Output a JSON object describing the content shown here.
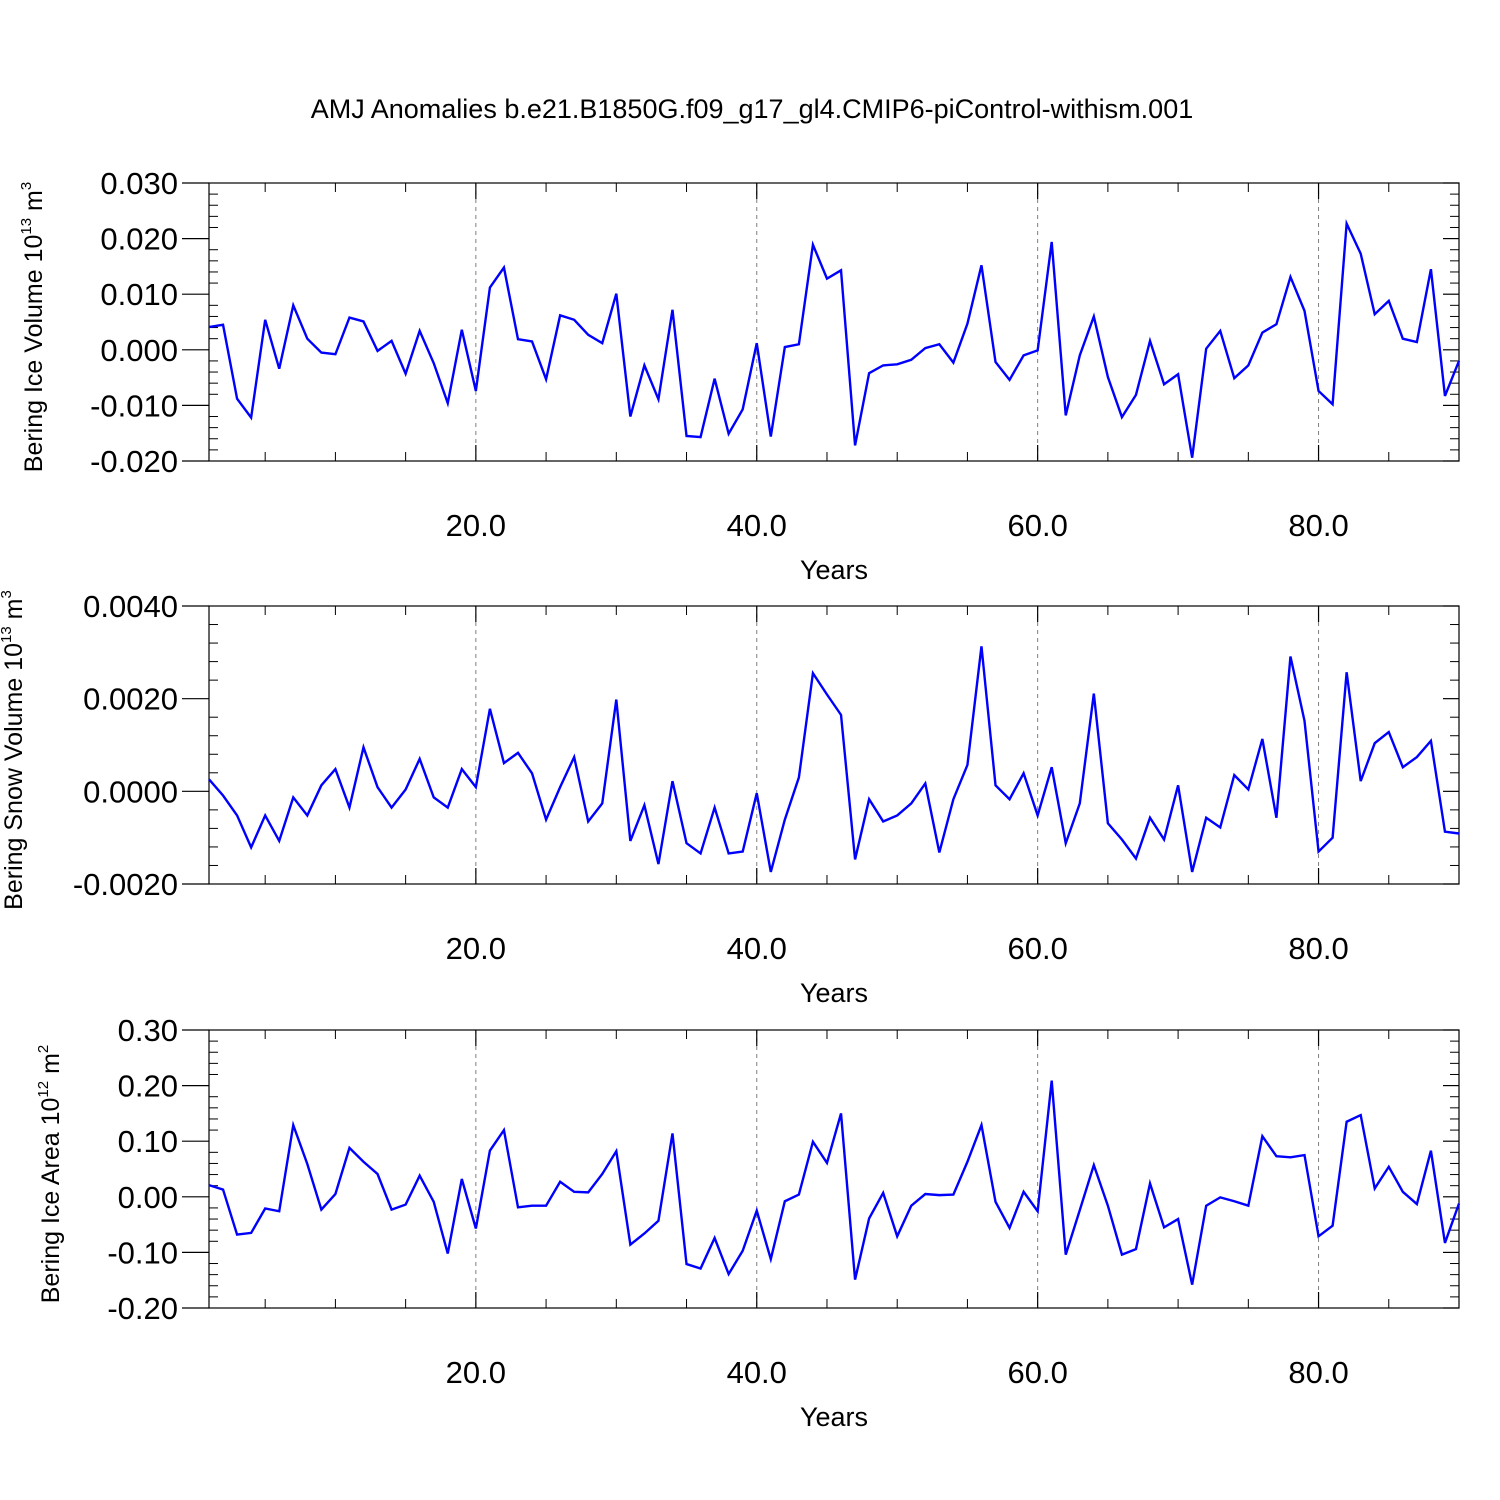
{
  "title": "AMJ Anomalies b.e21.B1850G.f09_g17_gl4.CMIP6-piControl-withism.001",
  "colors": {
    "line": "#0000ff",
    "axis": "#000000",
    "grid": "#808080"
  },
  "chart_data": [
    {
      "type": "line",
      "title": "AMJ Anomalies b.e21.B1850G.f09_g17_gl4.CMIP6-piControl-withism.001",
      "xlabel": "Years",
      "ylabel": {
        "text": "Bering Ice Volume 10",
        "sup": "13",
        "unit": " m",
        "unit_sup": "3"
      },
      "xlim": [
        1,
        90
      ],
      "ylim": [
        -0.02,
        0.03
      ],
      "x_ticks": [
        20,
        40,
        60,
        80
      ],
      "x_tick_labels": [
        "20.0",
        "40.0",
        "60.0",
        "80.0"
      ],
      "y_ticks": [
        -0.02,
        -0.01,
        0.0,
        0.01,
        0.02,
        0.03
      ],
      "y_tick_labels": [
        "-0.020",
        "-0.010",
        "0.000",
        "0.010",
        "0.020",
        "0.030"
      ],
      "grid": "vertical dashed at major x ticks",
      "x_start": 1,
      "series": [
        {
          "values": [
            0.0041,
            0.0045,
            -0.0088,
            -0.0122,
            0.0054,
            -0.0034,
            0.008,
            0.002,
            -0.0005,
            -0.0008,
            0.0058,
            0.0051,
            -0.0002,
            0.0016,
            -0.0043,
            0.0034,
            -0.0024,
            -0.0096,
            0.0036,
            -0.0074,
            0.0112,
            0.0148,
            0.0019,
            0.0015,
            -0.0053,
            0.0062,
            0.0054,
            0.0027,
            0.0012,
            0.0101,
            -0.012,
            -0.0028,
            -0.0089,
            0.0072,
            -0.0155,
            -0.0157,
            -0.0052,
            -0.0151,
            -0.0107,
            0.0012,
            -0.0156,
            0.0005,
            0.001,
            0.0189,
            0.0128,
            0.0143,
            -0.0172,
            -0.0042,
            -0.0028,
            -0.0026,
            -0.0018,
            0.0003,
            0.001,
            -0.0023,
            0.0047,
            0.0152,
            -0.0022,
            -0.0054,
            -0.001,
            -0.0001,
            0.0194,
            -0.0118,
            -0.001,
            0.006,
            -0.0049,
            -0.0121,
            -0.0081,
            0.0016,
            -0.0062,
            -0.0044,
            -0.0194,
            0.0002,
            0.0034,
            -0.0051,
            -0.0028,
            0.0031,
            0.0046,
            0.0131,
            0.007,
            -0.0074,
            -0.0098,
            0.0227,
            0.0173,
            0.0064,
            0.0088,
            0.002,
            0.0014,
            0.0145,
            -0.0083,
            -0.002
          ]
        }
      ]
    },
    {
      "type": "line",
      "xlabel": "Years",
      "ylabel": {
        "text": "Bering Snow Volume 10",
        "sup": "13",
        "unit": " m",
        "unit_sup": "3"
      },
      "xlim": [
        1,
        90
      ],
      "ylim": [
        -0.002,
        0.004
      ],
      "x_ticks": [
        20,
        40,
        60,
        80
      ],
      "x_tick_labels": [
        "20.0",
        "40.0",
        "60.0",
        "80.0"
      ],
      "y_ticks": [
        -0.002,
        0.0,
        0.002,
        0.004
      ],
      "y_tick_labels": [
        "-0.0020",
        "0.0000",
        "0.0020",
        "0.0040"
      ],
      "grid": "vertical dashed at major x ticks",
      "x_start": 1,
      "series": [
        {
          "values": [
            0.00026,
            -9e-05,
            -0.00052,
            -0.00121,
            -0.00052,
            -0.00107,
            -0.00013,
            -0.00052,
            0.00013,
            0.00048,
            -0.00035,
            0.00095,
            9e-05,
            -0.00035,
            4e-05,
            0.0007,
            -0.00013,
            -0.00035,
            0.00048,
            9e-05,
            0.00178,
            0.00061,
            0.00083,
            0.00039,
            -0.00061,
            9e-05,
            0.00074,
            -0.00065,
            -0.00026,
            0.00198,
            -0.00107,
            -0.0003,
            -0.00157,
            0.00022,
            -0.00112,
            -0.00134,
            -0.00035,
            -0.00134,
            -0.0013,
            -4e-05,
            -0.00174,
            -0.00061,
            0.0003,
            0.00255,
            0.00209,
            0.00165,
            -0.00147,
            -0.00017,
            -0.00065,
            -0.00052,
            -0.00026,
            0.00017,
            -0.00132,
            -0.00017,
            0.00057,
            0.00313,
            0.00013,
            -0.00017,
            0.00039,
            -0.00052,
            0.00052,
            -0.00112,
            -0.00026,
            0.00211,
            -0.00069,
            -0.00104,
            -0.00145,
            -0.00057,
            -0.00104,
            0.00013,
            -0.00174,
            -0.00057,
            -0.00078,
            0.00035,
            4e-05,
            0.00113,
            -0.00057,
            0.00291,
            0.00152,
            -0.0013,
            -0.001,
            0.00257,
            0.00022,
            0.00104,
            0.00128,
            0.00052,
            0.00074,
            0.00109,
            -0.00087,
            -0.00091
          ]
        }
      ]
    },
    {
      "type": "line",
      "xlabel": "Years",
      "ylabel": {
        "text": "Bering Ice Area 10",
        "sup": "12",
        "unit": " m",
        "unit_sup": "2"
      },
      "xlim": [
        1,
        90
      ],
      "ylim": [
        -0.2,
        0.3
      ],
      "x_ticks": [
        20,
        40,
        60,
        80
      ],
      "x_tick_labels": [
        "20.0",
        "40.0",
        "60.0",
        "80.0"
      ],
      "y_ticks": [
        -0.2,
        -0.1,
        0.0,
        0.1,
        0.2,
        0.3
      ],
      "y_tick_labels": [
        "-0.20",
        "-0.10",
        "0.00",
        "0.10",
        "0.20",
        "0.30"
      ],
      "grid": "vertical dashed at major x ticks",
      "x_start": 1,
      "series": [
        {
          "values": [
            0.021,
            0.013,
            -0.068,
            -0.065,
            -0.021,
            -0.026,
            0.129,
            0.059,
            -0.023,
            0.005,
            0.088,
            0.063,
            0.041,
            -0.023,
            -0.014,
            0.038,
            -0.009,
            -0.102,
            0.032,
            -0.057,
            0.083,
            0.12,
            -0.019,
            -0.016,
            -0.016,
            0.027,
            0.009,
            0.008,
            0.041,
            0.082,
            -0.086,
            -0.066,
            -0.043,
            0.114,
            -0.121,
            -0.129,
            -0.074,
            -0.139,
            -0.097,
            -0.025,
            -0.112,
            -0.008,
            0.004,
            0.099,
            0.061,
            0.15,
            -0.149,
            -0.039,
            0.007,
            -0.071,
            -0.016,
            0.005,
            0.003,
            0.004,
            0.063,
            0.129,
            -0.009,
            -0.056,
            0.009,
            -0.026,
            0.209,
            -0.104,
            -0.024,
            0.057,
            -0.016,
            -0.104,
            -0.094,
            0.024,
            -0.055,
            -0.04,
            -0.158,
            -0.016,
            -0.001,
            -0.008,
            -0.016,
            0.109,
            0.073,
            0.071,
            0.075,
            -0.071,
            -0.052,
            0.135,
            0.147,
            0.015,
            0.054,
            0.009,
            -0.013,
            0.083,
            -0.083,
            -0.012
          ]
        }
      ]
    }
  ]
}
